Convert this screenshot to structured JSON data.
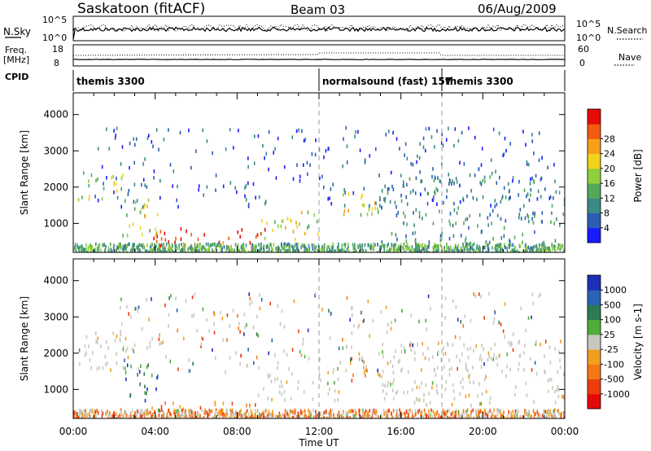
{
  "header": {
    "station": "Saskatoon (fitACF)",
    "beam": "Beam 03",
    "date": "06/Aug/2009"
  },
  "strips": {
    "nsky_label": "N.Sky",
    "nsky_ticks": [
      "10^5",
      "10^0"
    ],
    "nsearch_label": "N.Search",
    "nsearch_ticks": [
      "10^5",
      "10^0"
    ],
    "freq_label": "Freq.",
    "freq_unit": "[MHz]",
    "freq_ticks": [
      "18",
      "8"
    ],
    "nave_label": "Nave",
    "nave_ticks": [
      "60",
      "0"
    ],
    "cpid_label": "CPID",
    "cpid_segments": [
      {
        "name": "themis 3300",
        "start_hour": 0
      },
      {
        "name": "normalsound (fast) 157",
        "start_hour": 12
      },
      {
        "name": "themis 3300",
        "start_hour": 18
      }
    ]
  },
  "chart_data": [
    {
      "type": "heatmap",
      "title": "Power",
      "xlabel": "",
      "ylabel": "Slant Range [km]",
      "xlim": [
        0,
        24
      ],
      "ylim": [
        200,
        4600
      ],
      "y_ticks": [
        "1000",
        "2000",
        "3000",
        "4000"
      ],
      "colorbar_label": "Power [dB]",
      "colorbar_ticks": [
        "4",
        "8",
        "12",
        "16",
        "20",
        "24",
        "28"
      ],
      "colorbar_colors": [
        "#1a1aff",
        "#2a5db3",
        "#3a8a86",
        "#53a85a",
        "#8fd03c",
        "#f2d21b",
        "#f7a01a",
        "#f45b12",
        "#e80a08"
      ],
      "events": [
        {
          "t0": 0.2,
          "t1": 2.6,
          "r0": 1700,
          "r1": 2500,
          "level": 0.5
        },
        {
          "t0": 2.4,
          "t1": 4.2,
          "r0": 700,
          "r1": 1800,
          "level": 0.6
        },
        {
          "t0": 3.8,
          "t1": 9.5,
          "r0": 250,
          "r1": 900,
          "level": 0.95
        },
        {
          "t0": 9.0,
          "t1": 12.0,
          "r0": 600,
          "r1": 1400,
          "level": 0.55
        },
        {
          "t0": 13.0,
          "t1": 15.0,
          "r0": 1100,
          "r1": 1900,
          "level": 0.6
        },
        {
          "t0": 15.0,
          "t1": 24.0,
          "r0": 500,
          "r1": 2400,
          "level": 0.25
        }
      ]
    },
    {
      "type": "heatmap",
      "title": "Velocity",
      "xlabel": "Time UT",
      "ylabel": "Slant Range [km]",
      "xlim": [
        0,
        24
      ],
      "ylim": [
        200,
        4600
      ],
      "x_ticks": [
        "00:00",
        "04:00",
        "08:00",
        "12:00",
        "16:00",
        "20:00",
        "00:00"
      ],
      "y_ticks": [
        "1000",
        "2000",
        "3000",
        "4000"
      ],
      "colorbar_label": "Velocity [m s-1]",
      "colorbar_ticks": [
        "1000",
        "500",
        "100",
        "25",
        "-25",
        "-100",
        "-500",
        "-1000"
      ],
      "colorbar_colors": [
        "#1c2fb8",
        "#2b61b7",
        "#2e7a55",
        "#4fae3a",
        "#c8c8c0",
        "#f0a020",
        "#f57818",
        "#ef3c0c",
        "#e50a0a"
      ],
      "events": [
        {
          "t0": 0.2,
          "t1": 3.0,
          "r0": 1600,
          "r1": 2600,
          "level": "ground"
        },
        {
          "t0": 2.4,
          "t1": 4.2,
          "r0": 700,
          "r1": 1800,
          "level": "toward"
        },
        {
          "t0": 3.8,
          "t1": 9.5,
          "r0": 250,
          "r1": 700,
          "level": "away"
        },
        {
          "t0": 9.0,
          "t1": 13.0,
          "r0": 700,
          "r1": 1500,
          "level": "ground"
        },
        {
          "t0": 13.5,
          "t1": 15.0,
          "r0": 1200,
          "r1": 1900,
          "level": "away"
        },
        {
          "t0": 15.0,
          "t1": 24.0,
          "r0": 600,
          "r1": 2400,
          "level": "ground"
        }
      ]
    }
  ]
}
